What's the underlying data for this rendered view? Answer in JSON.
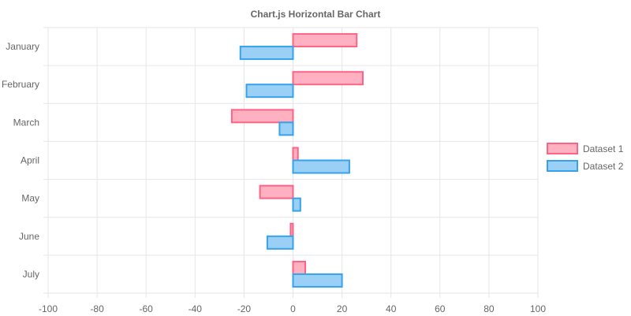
{
  "chart_data": {
    "type": "bar",
    "orientation": "horizontal",
    "title": "Chart.js Horizontal Bar Chart",
    "categories": [
      "January",
      "February",
      "March",
      "April",
      "May",
      "June",
      "July"
    ],
    "series": [
      {
        "name": "Dataset 1",
        "values": [
          26,
          28.5,
          -25,
          2,
          -13.5,
          -1,
          5
        ],
        "fill_color": "#ffb1c1",
        "border_color": "#ff6384"
      },
      {
        "name": "Dataset 2",
        "values": [
          -21.5,
          -19,
          -5.5,
          23,
          3,
          -10.5,
          20
        ],
        "fill_color": "#9ad0f5",
        "border_color": "#36a2eb"
      }
    ],
    "x_ticks": [
      "-100",
      "-80",
      "-60",
      "-40",
      "-20",
      "0",
      "20",
      "40",
      "60",
      "80",
      "100"
    ],
    "xlim": [
      -100,
      100
    ],
    "grid": true,
    "legend_position": "right",
    "xlabel": "",
    "ylabel": ""
  }
}
